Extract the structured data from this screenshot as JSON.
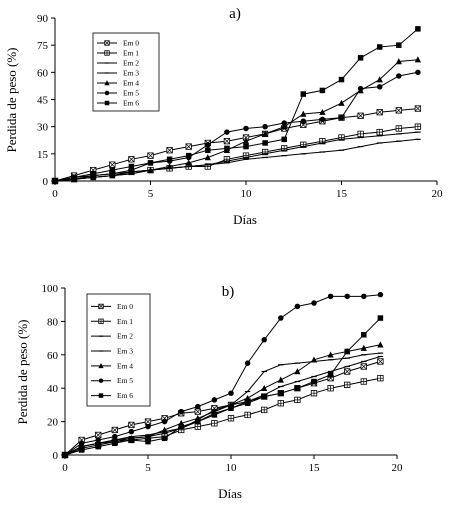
{
  "chart_data": [
    {
      "type": "line",
      "title": "a)",
      "xlabel": "Días",
      "ylabel": "Perdida de peso (%)",
      "xlim": [
        0,
        20
      ],
      "ylim": [
        0,
        90
      ],
      "xticks": [
        "0",
        "5",
        "10",
        "15",
        "20"
      ],
      "yticks": [
        "0",
        "15",
        "30",
        "45",
        "60",
        "75",
        "90"
      ],
      "grid": false,
      "legend": "top-left",
      "x": [
        0,
        1,
        2,
        3,
        4,
        5,
        6,
        7,
        8,
        9,
        10,
        11,
        12,
        13,
        14,
        15,
        16,
        17,
        18,
        19
      ],
      "series": [
        {
          "name": "Em 0",
          "marker": "boxx",
          "values": [
            0,
            3,
            6,
            9,
            12,
            14,
            17,
            19,
            21,
            22,
            24,
            26,
            29,
            31,
            33,
            35,
            36,
            38,
            39,
            40
          ]
        },
        {
          "name": "Em 1",
          "marker": "cross",
          "values": [
            0,
            1,
            3,
            4,
            5,
            6,
            7,
            8,
            8,
            12,
            14,
            16,
            18,
            20,
            22,
            24,
            26,
            27,
            29,
            30
          ]
        },
        {
          "name": "Em 2",
          "marker": "dash",
          "values": [
            0,
            1,
            2,
            3,
            4,
            6,
            7,
            8,
            9,
            11,
            13,
            15,
            17,
            19,
            21,
            23,
            24,
            25,
            26,
            27
          ]
        },
        {
          "name": "Em 3",
          "marker": "dash",
          "values": [
            0,
            1,
            2,
            3,
            4,
            6,
            7,
            8,
            9,
            10,
            12,
            13,
            14,
            15,
            16,
            17,
            19,
            21,
            22,
            23
          ]
        },
        {
          "name": "Em 4",
          "marker": "triangle",
          "values": [
            0,
            1,
            2,
            3,
            5,
            6,
            8,
            10,
            13,
            17,
            22,
            26,
            30,
            37,
            38,
            43,
            50,
            56,
            66,
            67
          ]
        },
        {
          "name": "Em 5",
          "marker": "circle",
          "values": [
            0,
            2,
            3,
            4,
            6,
            10,
            11,
            13,
            20,
            27,
            29,
            30,
            32,
            33,
            34,
            35,
            51,
            52,
            58,
            60
          ]
        },
        {
          "name": "Em 6",
          "marker": "square",
          "values": [
            0,
            2,
            4,
            6,
            8,
            10,
            12,
            14,
            17,
            18,
            19,
            21,
            23,
            48,
            50,
            56,
            68,
            74,
            75,
            84
          ]
        }
      ]
    },
    {
      "type": "line",
      "title": "b)",
      "xlabel": "Días",
      "ylabel": "Perdida de peso (%)",
      "xlim": [
        0,
        20
      ],
      "ylim": [
        0,
        100
      ],
      "xticks": [
        "0",
        "5",
        "10",
        "15",
        "20"
      ],
      "yticks": [
        "0",
        "20",
        "40",
        "60",
        "80",
        "100"
      ],
      "grid": false,
      "legend": "top-left",
      "x": [
        0,
        1,
        2,
        3,
        4,
        5,
        6,
        7,
        8,
        9,
        10,
        11,
        12,
        13,
        14,
        15,
        16,
        17,
        18,
        19
      ],
      "series": [
        {
          "name": "Em 0",
          "marker": "boxx",
          "values": [
            0,
            9,
            12,
            15,
            18,
            20,
            22,
            25,
            26,
            28,
            30,
            32,
            35,
            37,
            40,
            43,
            46,
            50,
            53,
            56
          ]
        },
        {
          "name": "Em 1",
          "marker": "cross",
          "values": [
            0,
            4,
            6,
            8,
            9,
            10,
            11,
            15,
            17,
            19,
            22,
            24,
            27,
            31,
            33,
            37,
            40,
            42,
            44,
            46
          ]
        },
        {
          "name": "Em 2",
          "marker": "dash",
          "values": [
            0,
            5,
            7,
            9,
            11,
            12,
            14,
            16,
            21,
            27,
            30,
            38,
            50,
            54,
            55,
            56,
            57,
            58,
            60,
            61
          ]
        },
        {
          "name": "Em 3",
          "marker": "dash",
          "values": [
            0,
            5,
            7,
            8,
            10,
            11,
            13,
            16,
            20,
            25,
            28,
            32,
            36,
            41,
            44,
            47,
            50,
            53,
            56,
            59
          ]
        },
        {
          "name": "Em 4",
          "marker": "triangle",
          "values": [
            0,
            5,
            7,
            9,
            10,
            11,
            15,
            19,
            22,
            26,
            30,
            34,
            40,
            45,
            50,
            57,
            60,
            62,
            64,
            66
          ]
        },
        {
          "name": "Em 5",
          "marker": "circle",
          "values": [
            0,
            7,
            9,
            11,
            14,
            17,
            20,
            26,
            29,
            33,
            37,
            55,
            69,
            82,
            89,
            91,
            95,
            95,
            95,
            96
          ]
        },
        {
          "name": "Em 6",
          "marker": "square",
          "values": [
            0,
            3,
            5,
            7,
            9,
            8,
            10,
            17,
            20,
            24,
            28,
            31,
            35,
            37,
            40,
            44,
            48,
            62,
            72,
            82
          ]
        }
      ]
    }
  ]
}
